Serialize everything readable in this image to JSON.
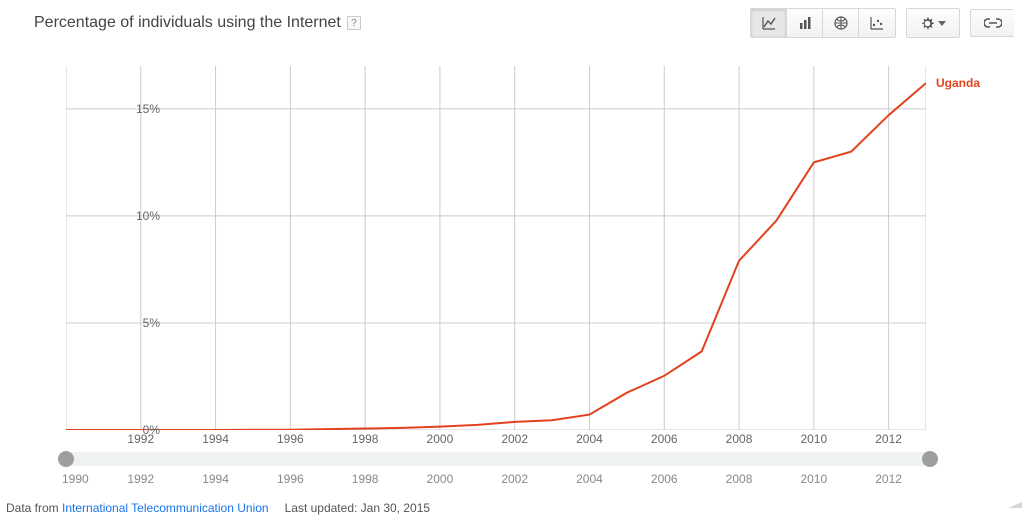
{
  "title": "Percentage of individuals using the Internet",
  "help_symbol": "?",
  "chart": {
    "type": "line",
    "x_years": [
      1990,
      1991,
      1992,
      1993,
      1994,
      1995,
      1996,
      1997,
      1998,
      1999,
      2000,
      2001,
      2002,
      2003,
      2004,
      2005,
      2006,
      2007,
      2008,
      2009,
      2010,
      2011,
      2012,
      2013
    ],
    "series": {
      "name": "Uganda",
      "color": "#e2431e",
      "line_width": 2,
      "values": [
        0,
        0,
        0,
        0,
        0,
        0.01,
        0.01,
        0.04,
        0.07,
        0.1,
        0.16,
        0.24,
        0.38,
        0.46,
        0.72,
        1.74,
        2.53,
        3.67,
        7.9,
        9.78,
        12.5,
        13.0,
        14.7,
        16.2
      ]
    },
    "xlim": [
      1990,
      2013
    ],
    "ylim": [
      0,
      17
    ],
    "y_ticks": [
      0,
      5,
      10,
      15
    ],
    "y_tick_labels": [
      "0%",
      "5%",
      "10%",
      "15%"
    ],
    "x_ticks": [
      1992,
      1994,
      1996,
      1998,
      2000,
      2002,
      2004,
      2006,
      2008,
      2010,
      2012
    ],
    "background_color": "#ffffff",
    "grid_color": "#cccccc",
    "axis_label_color": "#666666",
    "axis_label_fontsize": 12
  },
  "slider": {
    "track_color": "#eef2f3",
    "handle_color": "#9e9e9e",
    "start_label": "1990",
    "labels": [
      1992,
      1994,
      1996,
      1998,
      2000,
      2002,
      2004,
      2006,
      2008,
      2010,
      2012
    ]
  },
  "footer": {
    "prefix": "Data from ",
    "source_name": "International Telecommunication Union",
    "updated_label": "Last updated: Jan 30, 2015"
  }
}
